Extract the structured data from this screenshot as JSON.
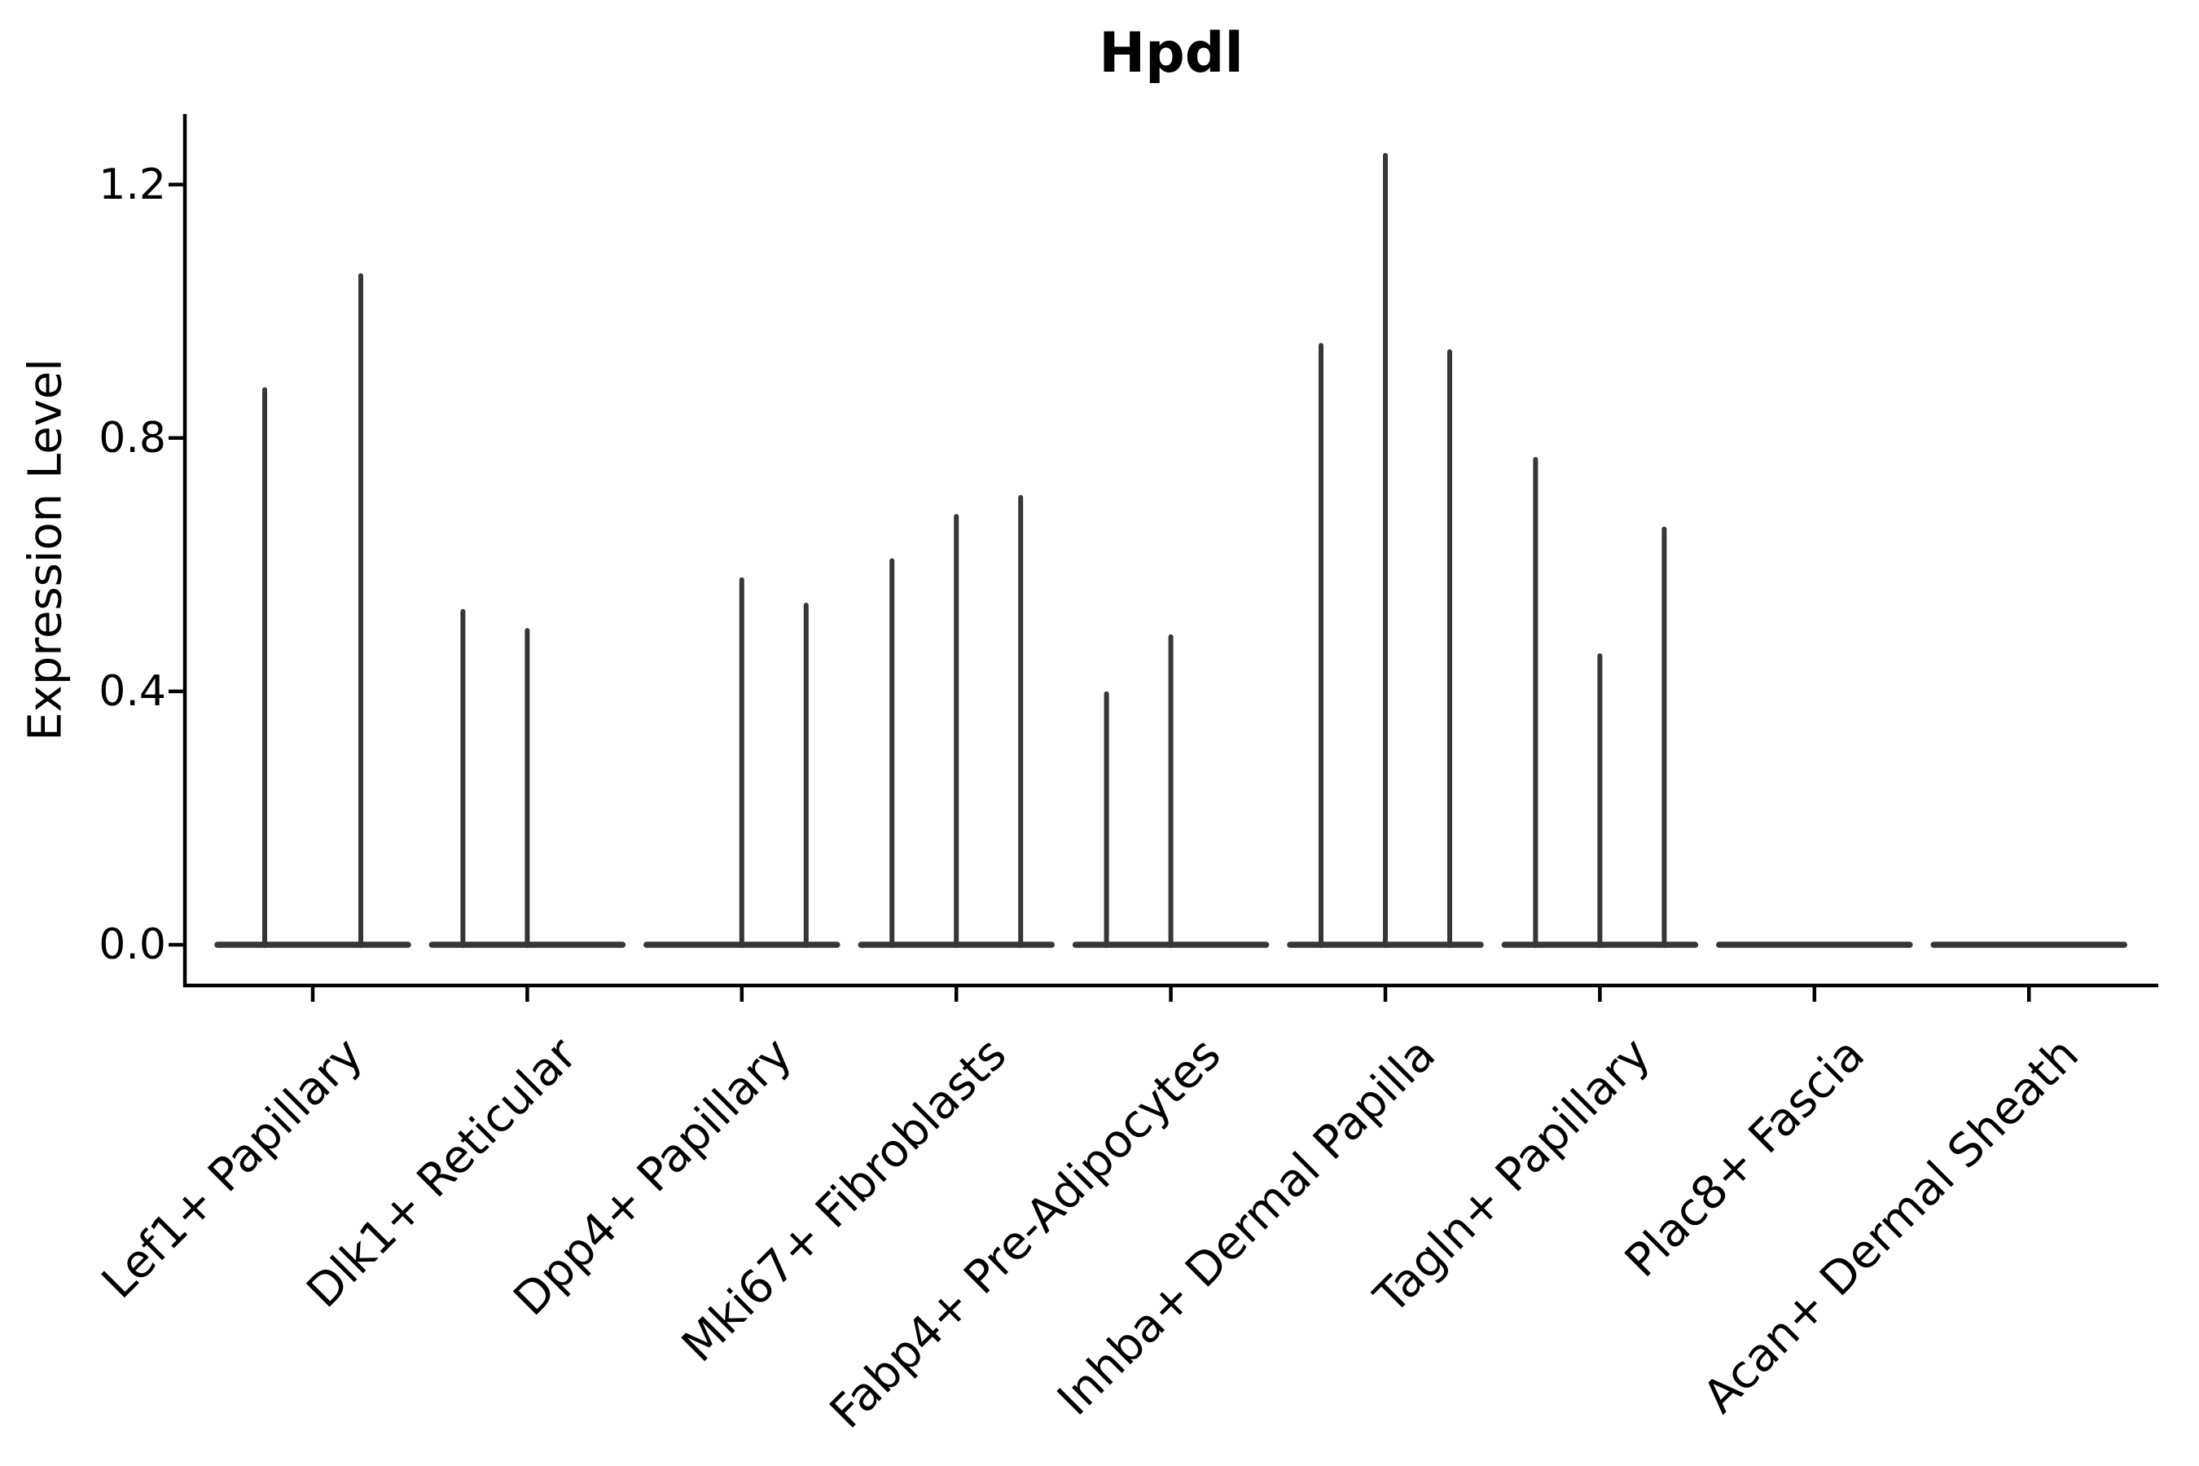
{
  "title": "Hpdl",
  "chart_data": {
    "type": "violin",
    "title": "Hpdl",
    "ylabel": "Expression Level",
    "xlabel": "",
    "yticks": [
      0.0,
      0.4,
      0.8,
      1.2
    ],
    "ytick_labels": [
      "0.0",
      "0.4",
      "0.8",
      "1.2"
    ],
    "ylim": [
      0,
      1.31
    ],
    "grid": false,
    "legend": "none",
    "categories": [
      "Lef1+ Papillary",
      "Dlk1+ Reticular",
      "Dpp4+ Papillary",
      "Mki67+ Fibroblasts",
      "Fabp4+ Pre-Adipocytes",
      "Inhba+ Dermal Papilla",
      "Tagln+ Papillary",
      "Plac8+ Fascia",
      "Acan+ Dermal Sheath"
    ],
    "description": "Violin plot of Hpdl expression per fibroblast cluster; violins are near-zero-width spikes rising from flat baselines at 0. Each group has 2-3 dodged violins; 'max' is the top expression value each spike reaches.",
    "groups": [
      {
        "label": "Lef1+ Papillary",
        "spikes": [
          {
            "dx": -59,
            "max": 0.88
          },
          {
            "dx": 59,
            "max": 1.06
          }
        ]
      },
      {
        "label": "Dlk1+ Reticular",
        "spikes": [
          {
            "dx": -79,
            "max": 0.53
          },
          {
            "dx": 0,
            "max": 0.5
          }
        ]
      },
      {
        "label": "Dpp4+ Papillary",
        "spikes": [
          {
            "dx": 0,
            "max": 0.58
          },
          {
            "dx": 79,
            "max": 0.54
          }
        ]
      },
      {
        "label": "Mki67+ Fibroblasts",
        "spikes": [
          {
            "dx": -79,
            "max": 0.61
          },
          {
            "dx": 0,
            "max": 0.68
          },
          {
            "dx": 79,
            "max": 0.71
          }
        ]
      },
      {
        "label": "Fabp4+ Pre-Adipocytes",
        "spikes": [
          {
            "dx": -79,
            "max": 0.4
          },
          {
            "dx": 0,
            "max": 0.49
          }
        ]
      },
      {
        "label": "Inhba+ Dermal Papilla",
        "spikes": [
          {
            "dx": -79,
            "max": 0.95
          },
          {
            "dx": 0,
            "max": 1.25
          },
          {
            "dx": 79,
            "max": 0.94
          }
        ]
      },
      {
        "label": "Tagln+ Papillary",
        "spikes": [
          {
            "dx": -79,
            "max": 0.77
          },
          {
            "dx": 0,
            "max": 0.46
          },
          {
            "dx": 79,
            "max": 0.66
          }
        ]
      },
      {
        "label": "Plac8+ Fascia",
        "spikes": []
      },
      {
        "label": "Acan+ Dermal Sheath",
        "spikes": []
      }
    ],
    "colors": {
      "violin": "#363636",
      "axis": "#000000",
      "text": "#000000",
      "background": "#ffffff"
    }
  }
}
